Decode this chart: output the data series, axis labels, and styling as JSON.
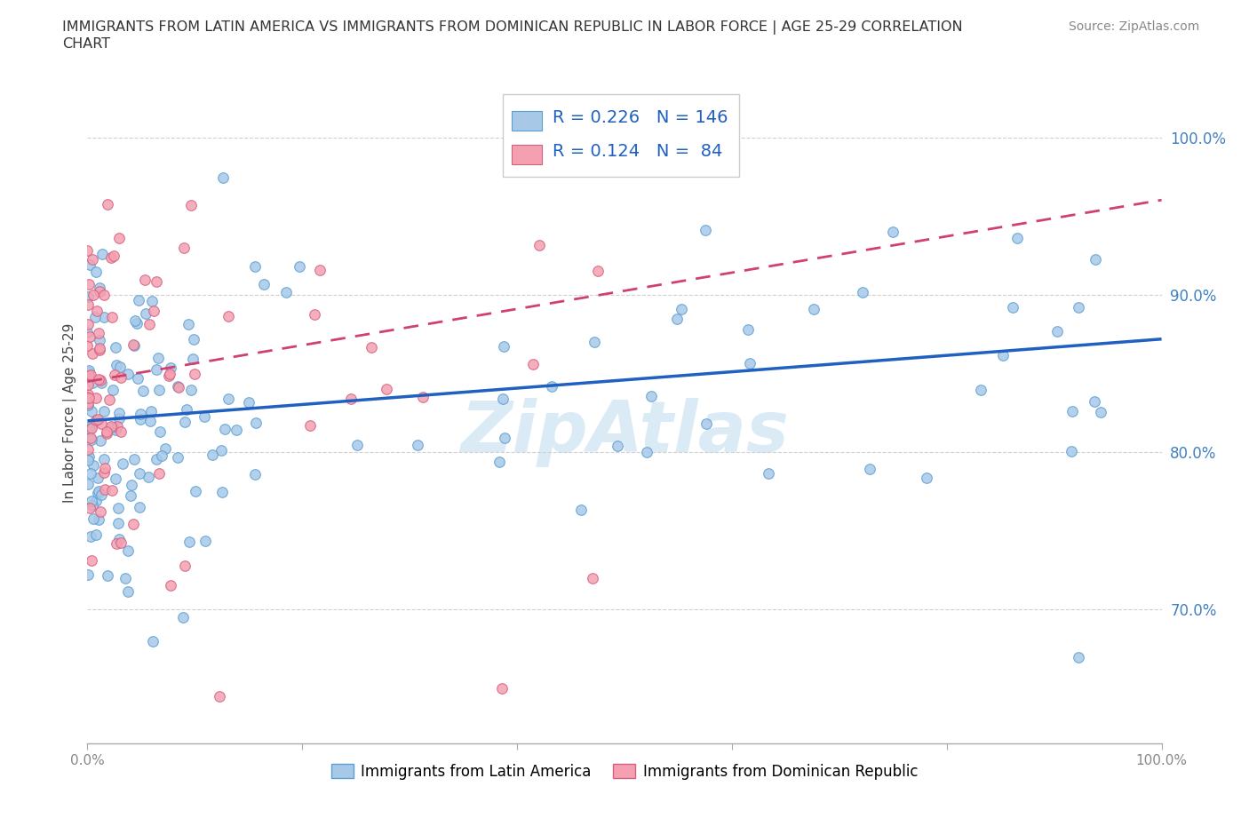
{
  "title_line1": "IMMIGRANTS FROM LATIN AMERICA VS IMMIGRANTS FROM DOMINICAN REPUBLIC IN LABOR FORCE | AGE 25-29 CORRELATION",
  "title_line2": "CHART",
  "source": "Source: ZipAtlas.com",
  "ylabel": "In Labor Force | Age 25-29",
  "x_min": 0.0,
  "x_max": 1.0,
  "y_min": 0.615,
  "y_max": 1.035,
  "y_ticks": [
    0.7,
    0.8,
    0.9,
    1.0
  ],
  "y_tick_labels": [
    "70.0%",
    "80.0%",
    "90.0%",
    "100.0%"
  ],
  "x_ticks": [
    0.0,
    0.2,
    0.4,
    0.6,
    0.8,
    1.0
  ],
  "x_tick_labels": [
    "0.0%",
    "",
    "",
    "",
    "",
    "100.0%"
  ],
  "blue_R": 0.226,
  "blue_N": 146,
  "pink_R": 0.124,
  "pink_N": 84,
  "blue_scatter_color": "#a8c8e8",
  "blue_scatter_edge": "#5a9fd4",
  "pink_scatter_color": "#f4a0b0",
  "pink_scatter_edge": "#d46080",
  "blue_line_color": "#2060c0",
  "pink_line_color": "#d04070",
  "grid_color": "#d0d0d0",
  "tick_color_y": "#4080c0",
  "tick_color_x": "#888888",
  "legend_label_blue": "Immigrants from Latin America",
  "legend_label_pink": "Immigrants from Dominican Republic",
  "blue_line_start_y": 0.82,
  "blue_line_end_y": 0.872,
  "pink_line_start_y": 0.845,
  "pink_line_end_y": 0.905,
  "pink_line_end_x": 0.52,
  "watermark_color": "#b8d8ee",
  "watermark_alpha": 0.5
}
